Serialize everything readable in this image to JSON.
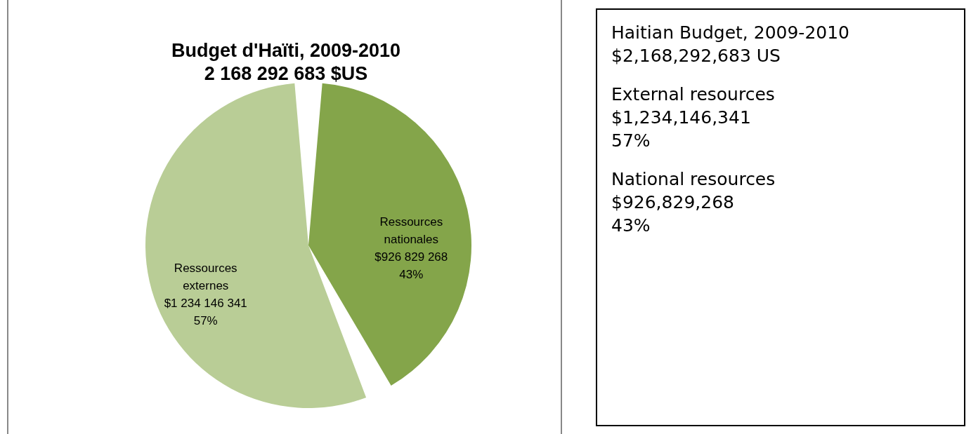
{
  "chart_data": [
    {
      "type": "pie",
      "title": "Budget d'Haïti, 2009-2010",
      "subtitle": "2 168 292 683 $US",
      "categories": [
        "Ressources externes",
        "Ressources nationales"
      ],
      "values": [
        1234146341,
        926829268
      ],
      "colors": [
        "#b9cd96",
        "#84a54a"
      ],
      "value_labels": [
        "$1 234 146 341\n57%",
        "$926 829 268\n43%"
      ],
      "legend": false
    },
    {
      "type": "other",
      "annotations": [
        "Haitian Budget, 2009-2010\n$2,168,292,683 US",
        "External resources\n$1,234,146,341\n57%",
        "National resources\n$926,829,268\n43%"
      ]
    }
  ]
}
